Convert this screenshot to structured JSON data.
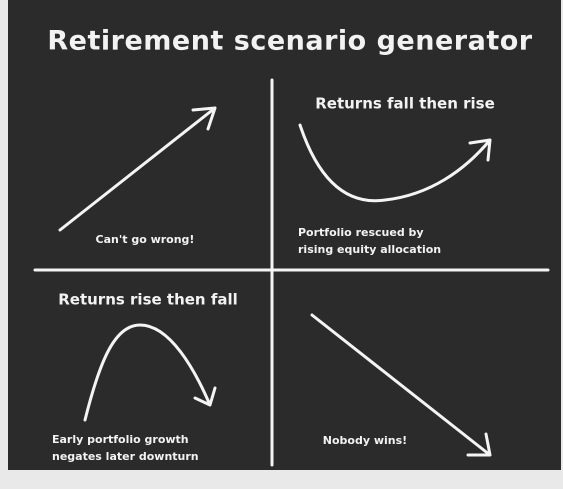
{
  "title": "Retirement scenario generator",
  "quadrants": [
    {
      "caption": [
        "Can't go wrong!"
      ]
    },
    {
      "heading": "Returns fall then rise",
      "caption": [
        "Portfolio rescued by",
        "rising equity allocation"
      ]
    },
    {
      "heading": "Returns rise then fall",
      "caption": [
        "Early portfolio growth",
        "negates later downturn"
      ]
    },
    {
      "caption": [
        "Nobody wins!"
      ]
    }
  ]
}
